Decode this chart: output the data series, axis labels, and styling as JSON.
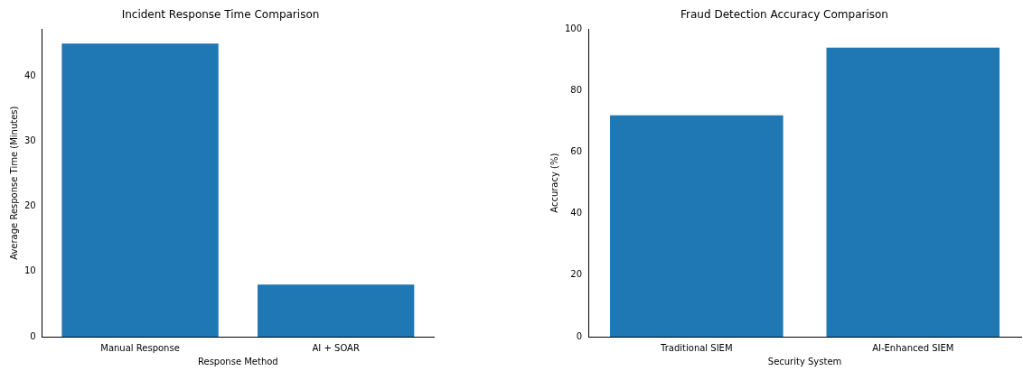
{
  "chart_data": [
    {
      "type": "bar",
      "title": "Incident Response Time Comparison",
      "xlabel": "Response Method",
      "ylabel": "Average Response Time (Minutes)",
      "categories": [
        "Manual Response",
        "AI + SOAR"
      ],
      "values": [
        45,
        8
      ],
      "color": "#1f77b4",
      "ylim": [
        0,
        47.2
      ],
      "yticks": [
        0,
        10,
        20,
        30,
        40
      ],
      "grid": false,
      "legend": false
    },
    {
      "type": "bar",
      "title": "Fraud Detection Accuracy Comparison",
      "xlabel": "Security System",
      "ylabel": "Accuracy (%)",
      "categories": [
        "Traditional SIEM",
        "AI-Enhanced SIEM"
      ],
      "values": [
        72,
        94
      ],
      "color": "#1f77b4",
      "ylim": [
        0,
        100
      ],
      "yticks": [
        0,
        20,
        40,
        60,
        80,
        100
      ],
      "grid": false,
      "legend": false
    }
  ]
}
